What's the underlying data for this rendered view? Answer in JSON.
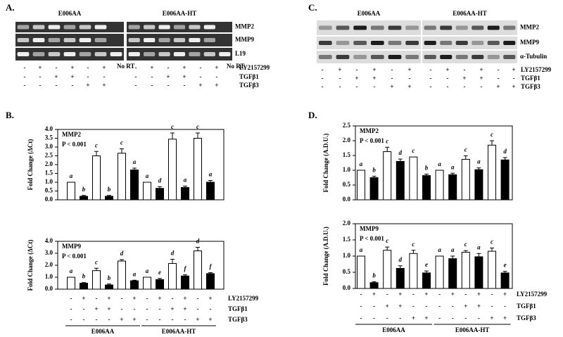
{
  "panel_labels": [
    "A.",
    "C.",
    "B.",
    "D."
  ],
  "gels": [
    {
      "groups": [
        "E006AA",
        "E006AA-HT"
      ],
      "bands": [
        "MMP2",
        "MMP9",
        "L19"
      ],
      "no_rt_label": "No RT",
      "treatments": [
        {
          "name": "LY2157299",
          "signs": [
            "-",
            "+",
            "-",
            "+",
            "-",
            "+",
            "-",
            "+",
            "-",
            "+",
            "-",
            "+"
          ]
        },
        {
          "name": "TGFβ1",
          "signs": [
            "-",
            "-",
            "+",
            "+",
            "-",
            "-",
            "-",
            "-",
            "+",
            "+",
            "-",
            "-"
          ]
        },
        {
          "name": "TGFβ3",
          "signs": [
            "-",
            "-",
            "-",
            "-",
            "+",
            "+",
            "-",
            "-",
            "-",
            "-",
            "+",
            "+"
          ]
        }
      ]
    },
    {
      "groups": [
        "E006AA",
        "E006AA-HT"
      ],
      "bands": [
        "MMP2",
        "MMP9",
        "α-Tubulin"
      ],
      "treatments": [
        {
          "name": "LY2157299",
          "signs": [
            "-",
            "+",
            "-",
            "+",
            "-",
            "+",
            "-",
            "+",
            "-",
            "+",
            "-",
            "+"
          ]
        },
        {
          "name": "TGFβ1",
          "signs": [
            "-",
            "-",
            "+",
            "+",
            "-",
            "-",
            "-",
            "-",
            "+",
            "+",
            "-",
            "-"
          ]
        },
        {
          "name": "TGFβ3",
          "signs": [
            "-",
            "-",
            "-",
            "-",
            "+",
            "+",
            "-",
            "-",
            "-",
            "-",
            "+",
            "+"
          ]
        }
      ]
    }
  ],
  "chart_data": [
    {
      "type": "bar",
      "title": "MMP2",
      "annotation": "P < 0.001",
      "y_label": "Fold Change (ΔCt)",
      "values": [
        1.0,
        0.2,
        2.5,
        0.2,
        2.65,
        1.7,
        1.0,
        0.65,
        3.45,
        0.7,
        3.5,
        1.0
      ],
      "errors": [
        0,
        0.05,
        0.25,
        0.05,
        0.25,
        0.1,
        0,
        0.1,
        0.35,
        0.08,
        0.3,
        0.1
      ],
      "letters": [
        "a",
        "b",
        "c",
        "b",
        "c",
        "a",
        "a",
        "d",
        "c",
        "a",
        "c",
        "a"
      ],
      "colors": [
        "#ffffff",
        "#000000",
        "#ffffff",
        "#000000",
        "#ffffff",
        "#000000",
        "#ffffff",
        "#000000",
        "#ffffff",
        "#000000",
        "#ffffff",
        "#000000"
      ],
      "ylim": [
        0,
        4
      ],
      "yticks": [
        {
          "value": 0,
          "label": "0.0"
        },
        {
          "value": 0.5,
          "label": "0.5"
        },
        {
          "value": 1,
          "label": "1.0"
        },
        {
          "value": 1.5,
          "label": "1.5"
        },
        {
          "value": 2,
          "label": "2.0"
        },
        {
          "value": 2.5,
          "label": "2.5"
        },
        {
          "value": 3,
          "label": "3.0"
        },
        {
          "value": 3.5,
          "label": "3.5"
        },
        {
          "value": 4,
          "label": "4.0"
        }
      ]
    },
    {
      "type": "bar",
      "title": "MMP9",
      "annotation": "P < 0.001",
      "y_label": "Fold Change (ΔCt)",
      "values": [
        1.0,
        0.5,
        1.55,
        0.35,
        2.35,
        0.7,
        1.0,
        0.8,
        2.15,
        1.1,
        3.2,
        1.3
      ],
      "errors": [
        0,
        0.05,
        0.2,
        0.08,
        0.12,
        0.05,
        0,
        0.1,
        0.35,
        0.1,
        0.3,
        0.08
      ],
      "letters": [
        "a",
        "b",
        "c",
        "b",
        "d",
        "a",
        "a",
        "e",
        "d",
        "f",
        "d",
        "f"
      ],
      "colors": [
        "#ffffff",
        "#000000",
        "#ffffff",
        "#000000",
        "#ffffff",
        "#000000",
        "#ffffff",
        "#000000",
        "#ffffff",
        "#000000",
        "#ffffff",
        "#000000"
      ],
      "ylim": [
        0,
        4
      ],
      "yticks": [
        {
          "value": 0,
          "label": "0.0"
        },
        {
          "value": 1,
          "label": "1.0"
        },
        {
          "value": 2,
          "label": "2.0"
        },
        {
          "value": 3,
          "label": "3.0"
        },
        {
          "value": 4,
          "label": "4.0"
        }
      ],
      "groups": [
        "E006AA",
        "E006AA-HT"
      ],
      "treatments": [
        {
          "name": "LY2157299",
          "signs": [
            "-",
            "+",
            "-",
            "+",
            "-",
            "+",
            "-",
            "+",
            "-",
            "+",
            "-",
            "+"
          ]
        },
        {
          "name": "TGFβ1",
          "signs": [
            "-",
            "-",
            "+",
            "+",
            "-",
            "-",
            "-",
            "-",
            "+",
            "+",
            "-",
            "-"
          ]
        },
        {
          "name": "TGFβ3",
          "signs": [
            "-",
            "-",
            "-",
            "-",
            "+",
            "+",
            "-",
            "-",
            "-",
            "-",
            "+",
            "+"
          ]
        }
      ]
    },
    {
      "type": "bar",
      "title": "MMP2",
      "annotation": "P < 0.001",
      "y_label": "Fold Change (A.D.U.)",
      "values": [
        1.0,
        0.75,
        1.63,
        1.3,
        1.45,
        0.82,
        1.0,
        0.85,
        1.37,
        1.02,
        1.85,
        1.35
      ],
      "errors": [
        0,
        0.05,
        0.15,
        0.08,
        0,
        0.05,
        0,
        0.05,
        0.12,
        0.06,
        0.15,
        0.08
      ],
      "letters": [
        "a",
        "b",
        "c",
        "d",
        "c",
        "b",
        "a",
        "a",
        "c",
        "a",
        "c",
        "d"
      ],
      "colors": [
        "#ffffff",
        "#000000",
        "#ffffff",
        "#000000",
        "#ffffff",
        "#000000",
        "#ffffff",
        "#000000",
        "#ffffff",
        "#000000",
        "#ffffff",
        "#000000"
      ],
      "ylim": [
        0,
        2.5
      ],
      "yticks": [
        {
          "value": 0,
          "label": "0.0"
        },
        {
          "value": 0.5,
          "label": "0.5"
        },
        {
          "value": 1,
          "label": "1.0"
        },
        {
          "value": 1.5,
          "label": "1.5"
        },
        {
          "value": 2,
          "label": "2.0"
        },
        {
          "value": 2.5,
          "label": "2.5"
        }
      ]
    },
    {
      "type": "bar",
      "title": "MMP9",
      "annotation": "P < 0.001",
      "y_label": "Fold Change (A.D.U.)",
      "values": [
        1.0,
        0.18,
        1.18,
        0.62,
        1.08,
        0.48,
        1.0,
        0.92,
        1.12,
        0.98,
        1.15,
        0.48
      ],
      "errors": [
        0,
        0.03,
        0.1,
        0.08,
        0.1,
        0.06,
        0,
        0.08,
        0.05,
        0.1,
        0.1,
        0.05
      ],
      "letters": [
        "a",
        "b",
        "c",
        "d",
        "c",
        "e",
        "a",
        "a",
        "c",
        "a",
        "c",
        "e"
      ],
      "colors": [
        "#ffffff",
        "#000000",
        "#ffffff",
        "#000000",
        "#ffffff",
        "#000000",
        "#ffffff",
        "#000000",
        "#ffffff",
        "#000000",
        "#ffffff",
        "#000000"
      ],
      "ylim": [
        0,
        2
      ],
      "yticks": [
        {
          "value": 0,
          "label": "0.0"
        },
        {
          "value": 0.5,
          "label": "0.5"
        },
        {
          "value": 1,
          "label": "1.0"
        },
        {
          "value": 1.5,
          "label": "1.5"
        },
        {
          "value": 2,
          "label": "2.0"
        }
      ],
      "groups": [
        "E006AA",
        "E006AA-HT"
      ],
      "treatments": [
        {
          "name": "LY2157299",
          "signs": [
            "-",
            "+",
            "-",
            "+",
            "-",
            "+",
            "-",
            "+",
            "-",
            "+",
            "-",
            "+"
          ]
        },
        {
          "name": "TGFβ1",
          "signs": [
            "-",
            "-",
            "+",
            "+",
            "-",
            "-",
            "-",
            "-",
            "+",
            "+",
            "-",
            "-"
          ]
        },
        {
          "name": "TGFβ3",
          "signs": [
            "-",
            "-",
            "-",
            "-",
            "+",
            "+",
            "-",
            "-",
            "-",
            "-",
            "+",
            "+"
          ]
        }
      ]
    }
  ]
}
